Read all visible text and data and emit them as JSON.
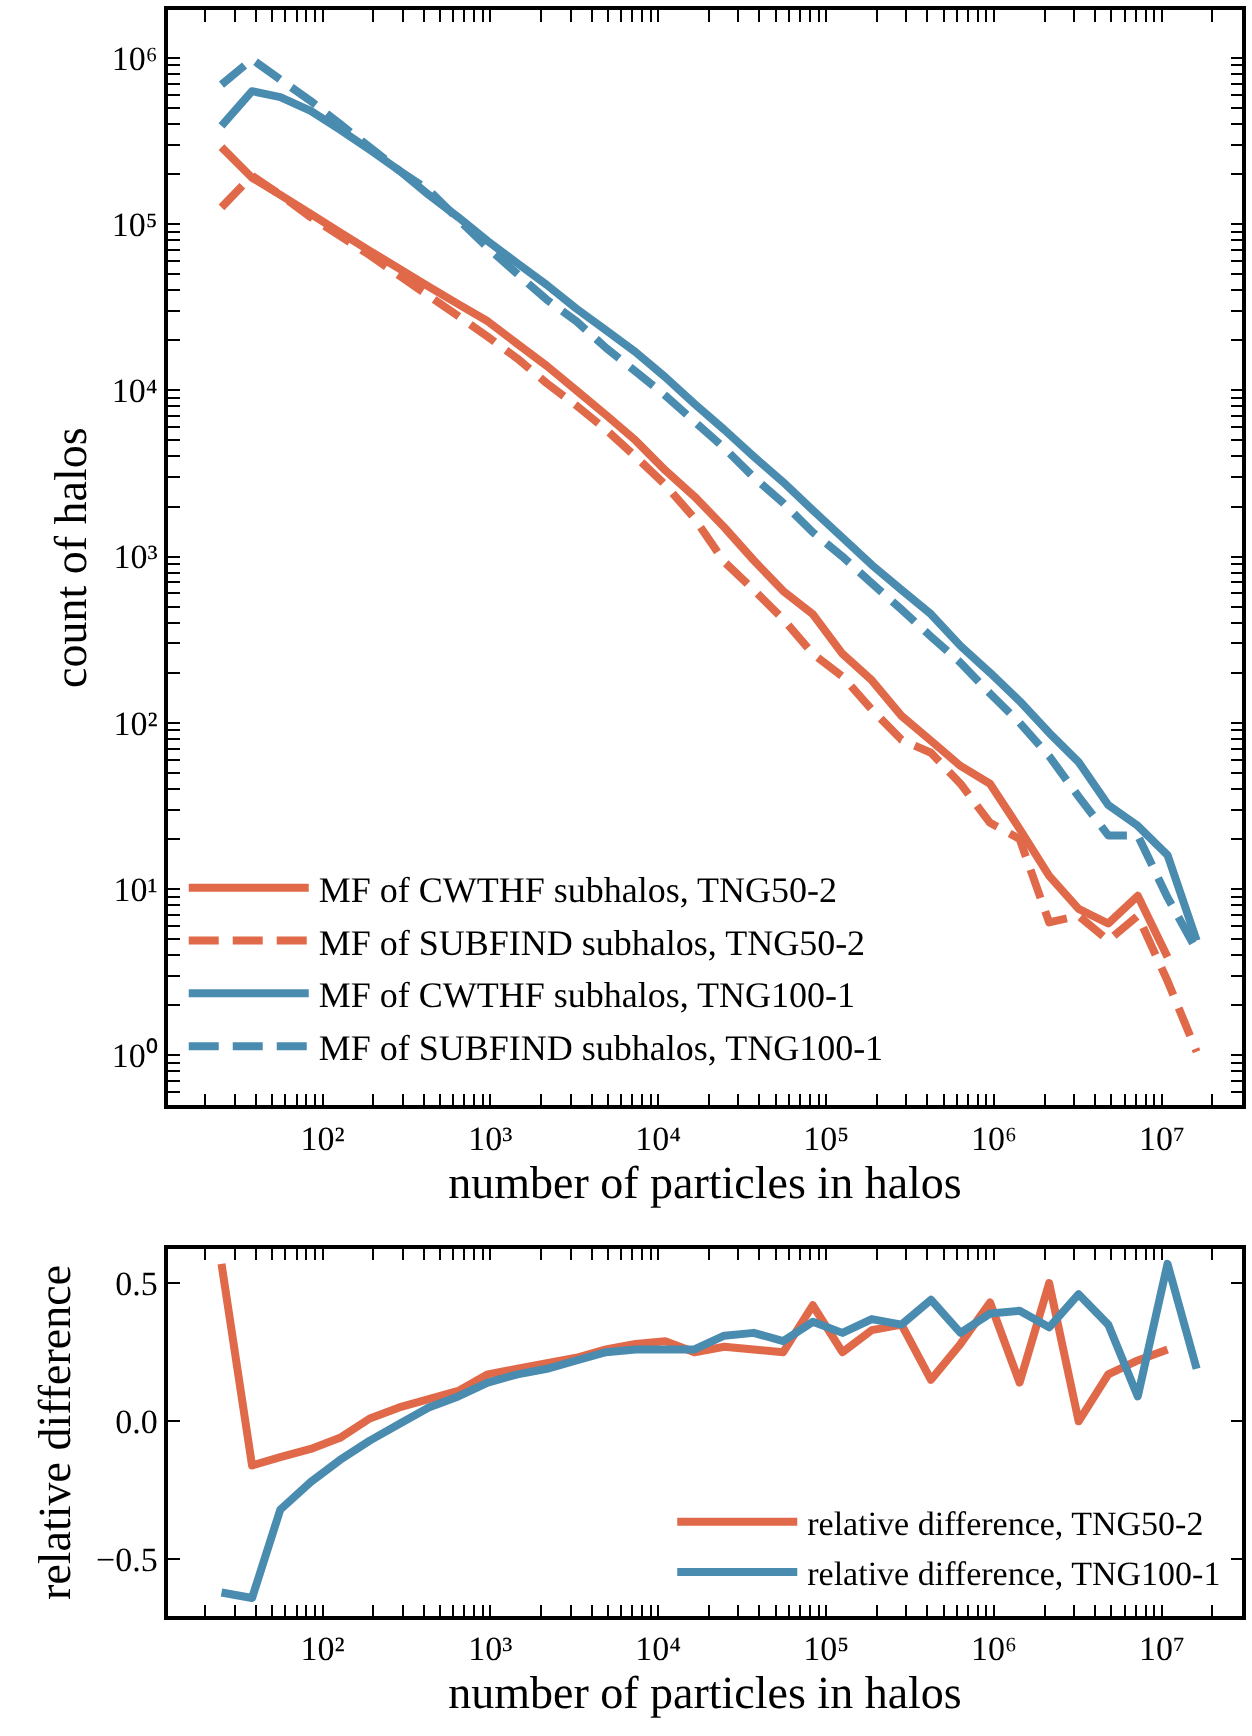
{
  "chart_data": [
    {
      "type": "line",
      "xlabel": "number of particles in halos",
      "ylabel": "count of halos",
      "log": "xy",
      "legend": "bottom left",
      "x": [
        25,
        38,
        56,
        85,
        127,
        191,
        286,
        429,
        643,
        964,
        1450,
        2170,
        3250,
        4880,
        7310,
        11000,
        16400,
        24700,
        37000,
        55500,
        83200,
        125000,
        187000,
        281000,
        421000,
        631000,
        946000,
        1420000,
        2130000,
        3190000,
        4790000,
        7180000,
        10800000,
        16100000
      ],
      "xlim": [
        12,
        30000000
      ],
      "ylim": [
        0.5,
        1940000
      ],
      "xticks": [
        {
          "value": 20,
          "label": null
        },
        {
          "value": 30,
          "label": null
        },
        {
          "value": 40,
          "label": null
        },
        {
          "value": 50,
          "label": null
        },
        {
          "value": 60,
          "label": null
        },
        {
          "value": 70,
          "label": null
        },
        {
          "value": 80,
          "label": null
        },
        {
          "value": 90,
          "label": null
        },
        {
          "value": 100,
          "label": "10²"
        },
        {
          "value": 200,
          "label": null
        },
        {
          "value": 300,
          "label": null
        },
        {
          "value": 400,
          "label": null
        },
        {
          "value": 500,
          "label": null
        },
        {
          "value": 600,
          "label": null
        },
        {
          "value": 700,
          "label": null
        },
        {
          "value": 800,
          "label": null
        },
        {
          "value": 900,
          "label": null
        },
        {
          "value": 1000,
          "label": "10³"
        },
        {
          "value": 2000,
          "label": null
        },
        {
          "value": 3000,
          "label": null
        },
        {
          "value": 4000,
          "label": null
        },
        {
          "value": 5000,
          "label": null
        },
        {
          "value": 6000,
          "label": null
        },
        {
          "value": 7000,
          "label": null
        },
        {
          "value": 8000,
          "label": null
        },
        {
          "value": 9000,
          "label": null
        },
        {
          "value": 10000,
          "label": "10⁴"
        },
        {
          "value": 20000,
          "label": null
        },
        {
          "value": 30000,
          "label": null
        },
        {
          "value": 40000,
          "label": null
        },
        {
          "value": 50000,
          "label": null
        },
        {
          "value": 60000,
          "label": null
        },
        {
          "value": 70000,
          "label": null
        },
        {
          "value": 80000,
          "label": null
        },
        {
          "value": 90000,
          "label": null
        },
        {
          "value": 100000,
          "label": "10⁵"
        },
        {
          "value": 200000,
          "label": null
        },
        {
          "value": 300000,
          "label": null
        },
        {
          "value": 400000,
          "label": null
        },
        {
          "value": 500000,
          "label": null
        },
        {
          "value": 600000,
          "label": null
        },
        {
          "value": 700000,
          "label": null
        },
        {
          "value": 800000,
          "label": null
        },
        {
          "value": 900000,
          "label": null
        },
        {
          "value": 1000000,
          "label": "10⁶"
        },
        {
          "value": 2000000,
          "label": null
        },
        {
          "value": 3000000,
          "label": null
        },
        {
          "value": 4000000,
          "label": null
        },
        {
          "value": 5000000,
          "label": null
        },
        {
          "value": 6000000,
          "label": null
        },
        {
          "value": 7000000,
          "label": null
        },
        {
          "value": 8000000,
          "label": null
        },
        {
          "value": 9000000,
          "label": null
        },
        {
          "value": 10000000,
          "label": "10⁷"
        },
        {
          "value": 20000000,
          "label": null
        }
      ],
      "yticks": [
        {
          "value": 0.6,
          "label": null
        },
        {
          "value": 0.7,
          "label": null
        },
        {
          "value": 0.8,
          "label": null
        },
        {
          "value": 0.9,
          "label": null
        },
        {
          "value": 1,
          "label": "10⁰"
        },
        {
          "value": 2,
          "label": null
        },
        {
          "value": 3,
          "label": null
        },
        {
          "value": 4,
          "label": null
        },
        {
          "value": 5,
          "label": null
        },
        {
          "value": 6,
          "label": null
        },
        {
          "value": 7,
          "label": null
        },
        {
          "value": 8,
          "label": null
        },
        {
          "value": 9,
          "label": null
        },
        {
          "value": 10,
          "label": "10¹"
        },
        {
          "value": 20,
          "label": null
        },
        {
          "value": 30,
          "label": null
        },
        {
          "value": 40,
          "label": null
        },
        {
          "value": 50,
          "label": null
        },
        {
          "value": 60,
          "label": null
        },
        {
          "value": 70,
          "label": null
        },
        {
          "value": 80,
          "label": null
        },
        {
          "value": 90,
          "label": null
        },
        {
          "value": 100,
          "label": "10²"
        },
        {
          "value": 200,
          "label": null
        },
        {
          "value": 300,
          "label": null
        },
        {
          "value": 400,
          "label": null
        },
        {
          "value": 500,
          "label": null
        },
        {
          "value": 600,
          "label": null
        },
        {
          "value": 700,
          "label": null
        },
        {
          "value": 800,
          "label": null
        },
        {
          "value": 900,
          "label": null
        },
        {
          "value": 1000,
          "label": "10³"
        },
        {
          "value": 2000,
          "label": null
        },
        {
          "value": 3000,
          "label": null
        },
        {
          "value": 4000,
          "label": null
        },
        {
          "value": 5000,
          "label": null
        },
        {
          "value": 6000,
          "label": null
        },
        {
          "value": 7000,
          "label": null
        },
        {
          "value": 8000,
          "label": null
        },
        {
          "value": 9000,
          "label": null
        },
        {
          "value": 10000,
          "label": "10⁴"
        },
        {
          "value": 20000,
          "label": null
        },
        {
          "value": 30000,
          "label": null
        },
        {
          "value": 40000,
          "label": null
        },
        {
          "value": 50000,
          "label": null
        },
        {
          "value": 60000,
          "label": null
        },
        {
          "value": 70000,
          "label": null
        },
        {
          "value": 80000,
          "label": null
        },
        {
          "value": 90000,
          "label": null
        },
        {
          "value": 100000,
          "label": "10⁵"
        },
        {
          "value": 200000,
          "label": null
        },
        {
          "value": 300000,
          "label": null
        },
        {
          "value": 400000,
          "label": null
        },
        {
          "value": 500000,
          "label": null
        },
        {
          "value": 600000,
          "label": null
        },
        {
          "value": 700000,
          "label": null
        },
        {
          "value": 800000,
          "label": null
        },
        {
          "value": 900000,
          "label": null
        },
        {
          "value": 1000000,
          "label": "10⁶"
        }
      ],
      "series": [
        {
          "name": "MF of CWTHF subhalos, TNG50-2",
          "color": "#e0694a",
          "line_style": "solid",
          "values": [
            290000,
            190000,
            150000,
            115000,
            89000,
            69000,
            54000,
            42000,
            33000,
            26000,
            19000,
            14000,
            10000,
            7100,
            5000,
            3300,
            2300,
            1500,
            950,
            620,
            450,
            260,
            180,
            110,
            78,
            55,
            43,
            23,
            12,
            7.6,
            6.2,
            9.1,
            3.9,
            null
          ]
        },
        {
          "name": "MF of SUBFIND subhalos, TNG50-2",
          "color": "#e0694a",
          "line_style": "dashed",
          "values": [
            126000,
            195000,
            150000,
            110000,
            85000,
            65000,
            49000,
            37000,
            28000,
            21000,
            15500,
            11000,
            8100,
            5800,
            4000,
            2700,
            1700,
            930,
            630,
            420,
            260,
            190,
            120,
            79,
            66,
            43,
            25,
            20,
            6.3,
            6.9,
            4.9,
            6.9,
            2.8,
            1.05
          ]
        },
        {
          "name": "MF of CWTHF subhalos, TNG100-1",
          "color": "#4a8bb0",
          "line_style": "solid",
          "values": [
            390000,
            630000,
            580000,
            480000,
            370000,
            280000,
            210000,
            150000,
            110000,
            79000,
            58000,
            43000,
            31000,
            23000,
            17000,
            12000,
            8300,
            5800,
            4000,
            2800,
            1900,
            1300,
            890,
            630,
            450,
            290,
            200,
            135,
            87,
            58,
            32,
            24,
            16,
            4.9
          ]
        },
        {
          "name": "MF of SUBFIND subhalos, TNG100-1",
          "color": "#4a8bb0",
          "line_style": "dashed",
          "values": [
            690000,
            980000,
            740000,
            550000,
            400000,
            290000,
            210000,
            160000,
            107000,
            72000,
            50000,
            35000,
            26000,
            18000,
            13000,
            9300,
            6500,
            4500,
            3000,
            2100,
            1400,
            1000,
            690,
            480,
            330,
            230,
            150,
            100,
            63,
            36,
            21,
            21,
            8.9,
            4.3
          ]
        }
      ]
    },
    {
      "type": "line",
      "xlabel": "number of particles in halos",
      "ylabel": "relative difference",
      "log": "x",
      "legend": "bottom right",
      "x": [
        25,
        38,
        56,
        85,
        127,
        191,
        286,
        429,
        643,
        964,
        1450,
        2170,
        3250,
        4880,
        7310,
        11000,
        16400,
        24700,
        37000,
        55500,
        83200,
        125000,
        187000,
        281000,
        421000,
        631000,
        946000,
        1420000,
        2130000,
        3190000,
        4790000,
        7180000,
        10800000,
        16100000
      ],
      "xlim": [
        12,
        30000000
      ],
      "ylim": [
        -0.705,
        0.624
      ],
      "xticks": [
        {
          "value": 20,
          "label": null
        },
        {
          "value": 30,
          "label": null
        },
        {
          "value": 40,
          "label": null
        },
        {
          "value": 50,
          "label": null
        },
        {
          "value": 60,
          "label": null
        },
        {
          "value": 70,
          "label": null
        },
        {
          "value": 80,
          "label": null
        },
        {
          "value": 90,
          "label": null
        },
        {
          "value": 100,
          "label": "10²"
        },
        {
          "value": 200,
          "label": null
        },
        {
          "value": 300,
          "label": null
        },
        {
          "value": 400,
          "label": null
        },
        {
          "value": 500,
          "label": null
        },
        {
          "value": 600,
          "label": null
        },
        {
          "value": 700,
          "label": null
        },
        {
          "value": 800,
          "label": null
        },
        {
          "value": 900,
          "label": null
        },
        {
          "value": 1000,
          "label": "10³"
        },
        {
          "value": 2000,
          "label": null
        },
        {
          "value": 3000,
          "label": null
        },
        {
          "value": 4000,
          "label": null
        },
        {
          "value": 5000,
          "label": null
        },
        {
          "value": 6000,
          "label": null
        },
        {
          "value": 7000,
          "label": null
        },
        {
          "value": 8000,
          "label": null
        },
        {
          "value": 9000,
          "label": null
        },
        {
          "value": 10000,
          "label": "10⁴"
        },
        {
          "value": 20000,
          "label": null
        },
        {
          "value": 30000,
          "label": null
        },
        {
          "value": 40000,
          "label": null
        },
        {
          "value": 50000,
          "label": null
        },
        {
          "value": 60000,
          "label": null
        },
        {
          "value": 70000,
          "label": null
        },
        {
          "value": 80000,
          "label": null
        },
        {
          "value": 90000,
          "label": null
        },
        {
          "value": 100000,
          "label": "10⁵"
        },
        {
          "value": 200000,
          "label": null
        },
        {
          "value": 300000,
          "label": null
        },
        {
          "value": 400000,
          "label": null
        },
        {
          "value": 500000,
          "label": null
        },
        {
          "value": 600000,
          "label": null
        },
        {
          "value": 700000,
          "label": null
        },
        {
          "value": 800000,
          "label": null
        },
        {
          "value": 900000,
          "label": null
        },
        {
          "value": 1000000,
          "label": "10⁶"
        },
        {
          "value": 2000000,
          "label": null
        },
        {
          "value": 3000000,
          "label": null
        },
        {
          "value": 4000000,
          "label": null
        },
        {
          "value": 5000000,
          "label": null
        },
        {
          "value": 6000000,
          "label": null
        },
        {
          "value": 7000000,
          "label": null
        },
        {
          "value": 8000000,
          "label": null
        },
        {
          "value": 9000000,
          "label": null
        },
        {
          "value": 10000000,
          "label": "10⁷"
        },
        {
          "value": 20000000,
          "label": null
        }
      ],
      "yticks": [
        {
          "value": -0.5,
          "label": "−0.5"
        },
        {
          "value": 0,
          "label": "0.0"
        },
        {
          "value": 0.5,
          "label": "0.5"
        }
      ],
      "series": [
        {
          "name": "relative difference, TNG50-2",
          "color": "#e0694a",
          "line_style": "solid",
          "values": [
            0.57,
            -0.16,
            -0.13,
            -0.1,
            -0.06,
            0.01,
            0.05,
            0.08,
            0.11,
            0.17,
            0.19,
            0.21,
            0.23,
            0.26,
            0.28,
            0.29,
            0.25,
            0.27,
            0.26,
            0.25,
            0.42,
            0.25,
            0.33,
            0.35,
            0.15,
            0.28,
            0.43,
            0.14,
            0.5,
            0.0,
            0.17,
            0.22,
            0.26,
            null
          ]
        },
        {
          "name": "relative difference, TNG100-1",
          "color": "#4a8bb0",
          "line_style": "solid",
          "values": [
            -0.62,
            -0.64,
            -0.32,
            -0.22,
            -0.14,
            -0.07,
            -0.01,
            0.05,
            0.09,
            0.14,
            0.17,
            0.19,
            0.22,
            0.25,
            0.26,
            0.26,
            0.26,
            0.31,
            0.32,
            0.29,
            0.36,
            0.32,
            0.37,
            0.35,
            0.44,
            0.32,
            0.39,
            0.4,
            0.34,
            0.46,
            0.35,
            0.09,
            0.57,
            0.19
          ]
        }
      ]
    }
  ]
}
